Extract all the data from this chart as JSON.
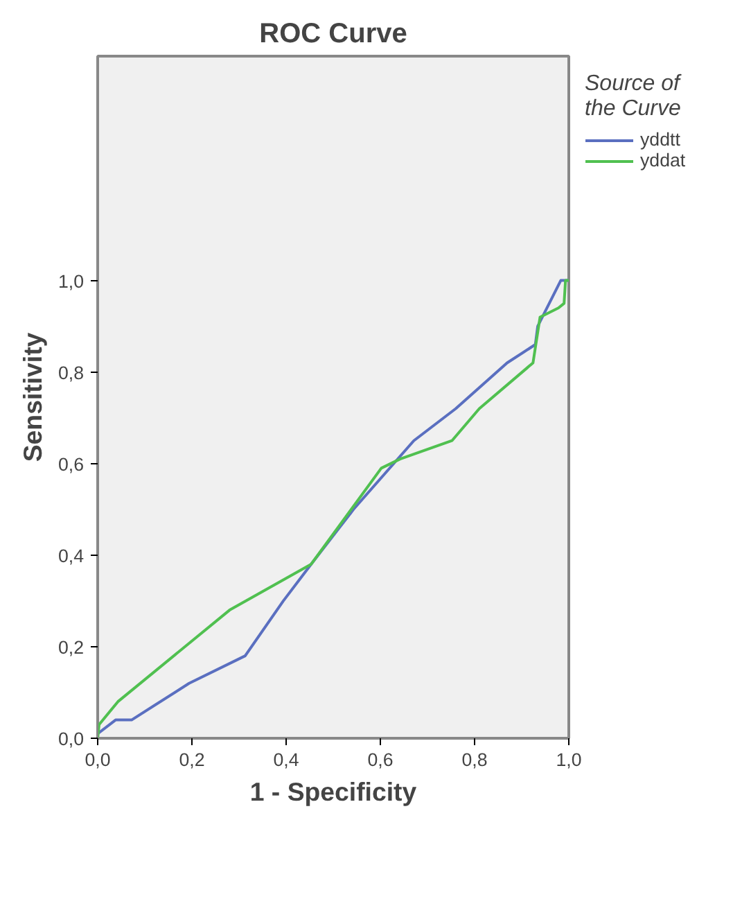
{
  "chart_data": {
    "type": "line",
    "title": "ROC Curve",
    "xlabel": "1 - Specificity",
    "ylabel": "Sensitivity",
    "legend_title": "Source of the Curve",
    "legend": "right",
    "grid": false,
    "marker": "none",
    "line_style": "solid",
    "xlim": [
      0,
      1
    ],
    "ylim": [
      0,
      1.49
    ],
    "xticks": [
      {
        "value": 0,
        "label": "0,0"
      },
      {
        "value": 0.2,
        "label": "0,2"
      },
      {
        "value": 0.4,
        "label": "0,4"
      },
      {
        "value": 0.6,
        "label": "0,6"
      },
      {
        "value": 0.8,
        "label": "0,8"
      },
      {
        "value": 1,
        "label": "1,0"
      }
    ],
    "yticks": [
      {
        "value": 0,
        "label": "0,0"
      },
      {
        "value": 0.2,
        "label": "0,2"
      },
      {
        "value": 0.4,
        "label": "0,4"
      },
      {
        "value": 0.6,
        "label": "0,6"
      },
      {
        "value": 0.8,
        "label": "0,8"
      },
      {
        "value": 1,
        "label": "1,0"
      }
    ],
    "series": [
      {
        "name": "yddtt",
        "color": "#5a6fc0",
        "x": [
          0,
          0.038,
          0.072,
          0.194,
          0.313,
          0.394,
          0.453,
          0.543,
          0.671,
          0.76,
          0.869,
          0.929,
          0.934,
          0.983,
          1
        ],
        "values": [
          0.01,
          0.04,
          0.04,
          0.12,
          0.18,
          0.3,
          0.38,
          0.5,
          0.65,
          0.72,
          0.82,
          0.86,
          0.9,
          1,
          1
        ]
      },
      {
        "name": "yddat",
        "color": "#50c050",
        "x": [
          0,
          0.003,
          0.043,
          0.28,
          0.453,
          0.602,
          0.642,
          0.752,
          0.81,
          0.924,
          0.939,
          0.978,
          0.99,
          0.993,
          1
        ],
        "values": [
          0,
          0.03,
          0.08,
          0.28,
          0.38,
          0.59,
          0.61,
          0.65,
          0.72,
          0.82,
          0.92,
          0.94,
          0.95,
          1,
          1
        ]
      }
    ]
  }
}
